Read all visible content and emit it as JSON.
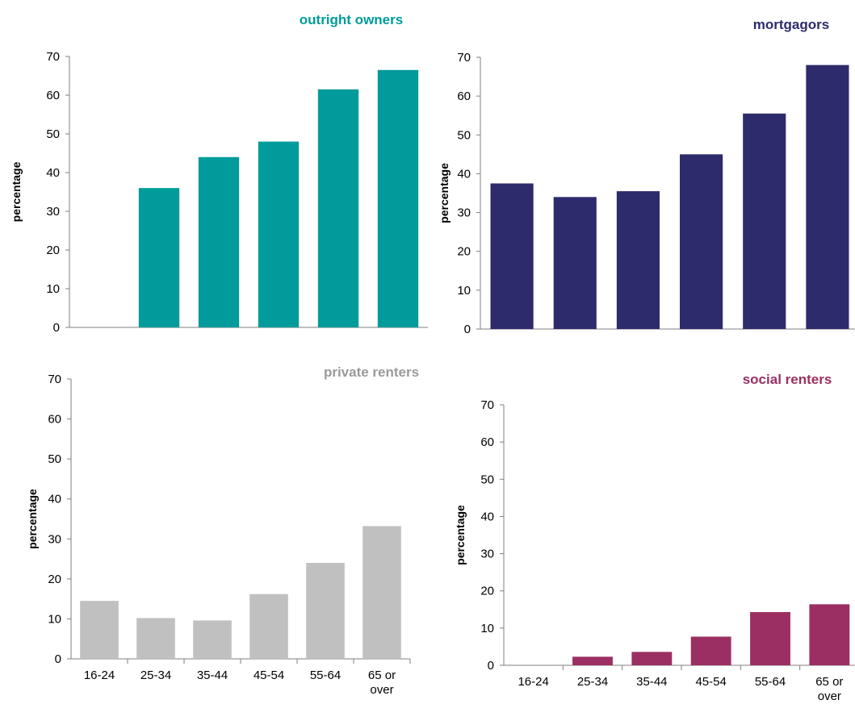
{
  "colors": {
    "outright_owners": "#009b9a",
    "mortgagors": "#2d2b6b",
    "private_renters": "#c0c0c0",
    "social_renters": "#9b2f63"
  },
  "chart_data": [
    {
      "type": "bar",
      "title": "outright owners",
      "ylabel": "percentage",
      "ylim": [
        0,
        70
      ],
      "yticks": [
        "0",
        "10",
        "20",
        "30",
        "40",
        "50",
        "60",
        "70"
      ],
      "categories": [
        "16-24",
        "25-34",
        "35-44",
        "45-54",
        "55-64",
        "65 or over"
      ],
      "values": [
        null,
        36,
        44,
        48,
        61.5,
        66.5
      ],
      "show_categories": false,
      "color": "#009b9a",
      "grid": false
    },
    {
      "type": "bar",
      "title": "mortgagors",
      "ylabel": "percentage",
      "ylim": [
        0,
        70
      ],
      "yticks": [
        "0",
        "10",
        "20",
        "30",
        "40",
        "50",
        "60",
        "70"
      ],
      "categories": [
        "16-24",
        "25-34",
        "35-44",
        "45-54",
        "55-64",
        "65 or over"
      ],
      "values": [
        37.5,
        34,
        35.5,
        45,
        55.5,
        68
      ],
      "show_categories": false,
      "color": "#2d2b6b",
      "grid": false
    },
    {
      "type": "bar",
      "title": "private renters",
      "ylabel": "percentage",
      "ylim": [
        0,
        70
      ],
      "yticks": [
        "0",
        "10",
        "20",
        "30",
        "40",
        "50",
        "60",
        "70"
      ],
      "categories": [
        "16-24",
        "25-34",
        "35-44",
        "45-54",
        "55-64",
        "65 or over"
      ],
      "values": [
        14.5,
        10.2,
        9.6,
        16.2,
        24,
        33.2
      ],
      "show_categories": true,
      "color": "#c0c0c0",
      "grid": false
    },
    {
      "type": "bar",
      "title": "social renters",
      "ylabel": "percentage",
      "ylim": [
        0,
        70
      ],
      "yticks": [
        "0",
        "10",
        "20",
        "30",
        "40",
        "50",
        "60",
        "70"
      ],
      "categories": [
        "16-24",
        "25-34",
        "35-44",
        "45-54",
        "55-64",
        "65 or over"
      ],
      "values": [
        null,
        2.3,
        3.6,
        7.7,
        14.3,
        16.4
      ],
      "show_categories": true,
      "color": "#9b2f63",
      "grid": false
    }
  ]
}
